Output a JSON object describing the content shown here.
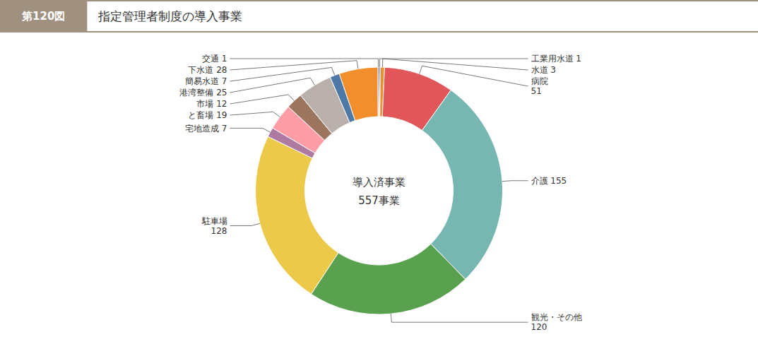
{
  "chart_data": {
    "type": "donut",
    "title": "指定管理者制度の導入事業",
    "subtitle": "第120図",
    "annotations": [
      "導入済事業",
      "557事業"
    ],
    "categories": [
      "工業用水道 1",
      "水道 3",
      "病院\n51",
      "介護 155",
      "観光・その他\n120",
      "駐車場\n128",
      "宅地造成 7",
      "と畜場 19",
      "市場 12",
      "港湾整備 25",
      "簡易水道 7",
      "下水道 28",
      "交通 1"
    ],
    "values": [
      1,
      3,
      51,
      155,
      120,
      128,
      7,
      19,
      12,
      25,
      7,
      28,
      1
    ]
  }
}
